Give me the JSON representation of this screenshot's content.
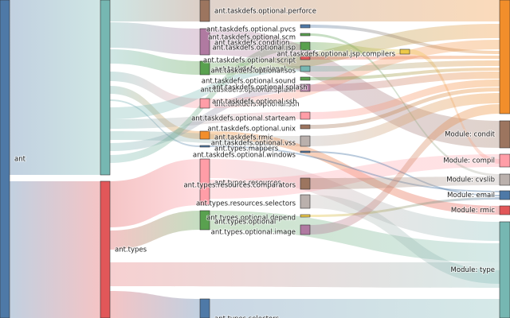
{
  "diagram": {
    "type": "sankey",
    "title": "",
    "root_nodes": [
      {
        "id": "ant",
        "label": "ant",
        "color": "#4e79a7"
      }
    ],
    "level1_nodes": [
      {
        "id": "ant_taskdefs",
        "label": "",
        "color": "#76b7b2"
      },
      {
        "id": "ant_types",
        "label": "ant.types",
        "color": "#e15759"
      }
    ],
    "level2_nodes": [
      {
        "id": "perforce",
        "label": "ant.taskdefs.optional.perforce",
        "color": "#9c755f"
      },
      {
        "id": "pvcs",
        "label": "ant.taskdefs.optional.pvcs",
        "color": "#4e79a7"
      },
      {
        "id": "scm",
        "label": "ant.taskdefs.optional.scm",
        "color": "#59a14f"
      },
      {
        "id": "condition",
        "label": "ant.taskdefs.condition",
        "color": "#b07aa1"
      },
      {
        "id": "jsp",
        "label": "ant.taskdefs.optional.jsp",
        "color": "#59a14f"
      },
      {
        "id": "jsp_compilers",
        "label": "ant.taskdefs.optional.jsp.compilers",
        "color": "#edc948"
      },
      {
        "id": "script",
        "label": "ant.taskdefs.optional.script",
        "color": "#e15759"
      },
      {
        "id": "optional_a",
        "label": "ant.taskdefs.optional",
        "color": "#59a14f"
      },
      {
        "id": "sos",
        "label": "ant.taskdefs.optional.sos",
        "color": "#76b7b2"
      },
      {
        "id": "sound",
        "label": "ant.taskdefs.optional.sound",
        "color": "#59a14f"
      },
      {
        "id": "splash",
        "label": "ant.taskdefs.optional.splash",
        "color": "#b07aa1"
      },
      {
        "id": "ssh",
        "label": "ant.taskdefs.optional.ssh",
        "color": "#ff9da7"
      },
      {
        "id": "starteam",
        "label": "ant.taskdefs.optional.starteam",
        "color": "#ff9da7"
      },
      {
        "id": "unix",
        "label": "ant.taskdefs.optional.unix",
        "color": "#9c755f"
      },
      {
        "id": "rmic",
        "label": "ant.taskdefs.rmic",
        "color": "#f28e2b"
      },
      {
        "id": "vss",
        "label": "ant.taskdefs.optional.vss",
        "color": "#bab0ac"
      },
      {
        "id": "mappers",
        "label": "ant.types.mappers",
        "color": "#4e79a7"
      },
      {
        "id": "windows",
        "label": "ant.taskdefs.optional.windows",
        "color": "#4e79a7"
      },
      {
        "id": "resources",
        "label": "ant.types.resources",
        "color": "#ff9da7"
      },
      {
        "id": "comparators",
        "label": "ant.types.resources.comparators",
        "color": "#9c755f"
      },
      {
        "id": "res_selectors",
        "label": "ant.types.resources.selectors",
        "color": "#bab0ac"
      },
      {
        "id": "depend",
        "label": "ant.types.optional.depend",
        "color": "#edc948"
      },
      {
        "id": "types_optional",
        "label": "ant.types.optional",
        "color": "#59a14f"
      },
      {
        "id": "image",
        "label": "ant.types.optional.image",
        "color": "#b07aa1"
      },
      {
        "id": "types_selectors",
        "label": "ant.types.selectors",
        "color": "#4e79a7"
      }
    ],
    "overlap_labels": [
      "ant.taskdefs.optional.splash",
      "ant.taskdefs.optional.ssh"
    ],
    "module_nodes": [
      {
        "id": "m_top",
        "label": "",
        "color": "#f28e2b"
      },
      {
        "id": "m_condit",
        "label": "Module: condit",
        "color": "#9c755f"
      },
      {
        "id": "m_compil",
        "label": "Module: compil",
        "color": "#ff9da7"
      },
      {
        "id": "m_cvslib",
        "label": "Module: cvslib",
        "color": "#bab0ac"
      },
      {
        "id": "m_email",
        "label": "Module: email",
        "color": "#4e79a7"
      },
      {
        "id": "m_rmic",
        "label": "Module: rmic",
        "color": "#e15759"
      },
      {
        "id": "m_type",
        "label": "Module: type",
        "color": "#76b7b2"
      }
    ]
  }
}
